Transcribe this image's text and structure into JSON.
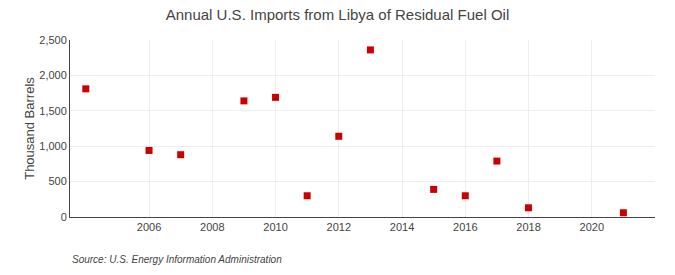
{
  "chart_data": {
    "type": "scatter",
    "title": "Annual U.S. Imports from Libya of Residual Fuel Oil",
    "ylabel": "Thousand Barrels",
    "annotations": [
      "Source: U.S. Energy Information Administration"
    ],
    "x": [
      2004,
      2006,
      2007,
      2009,
      2010,
      2011,
      2012,
      2013,
      2015,
      2016,
      2017,
      2018,
      2021
    ],
    "values": [
      1810,
      940,
      880,
      1640,
      1690,
      300,
      1140,
      2360,
      390,
      300,
      790,
      130,
      60
    ],
    "color": "#cc0000",
    "marker": "square",
    "xlim": [
      2003.5,
      2022
    ],
    "xticks": [
      2006,
      2008,
      2010,
      2012,
      2014,
      2016,
      2018,
      2020
    ],
    "ylim": [
      0,
      2500
    ],
    "yticks": [
      0,
      500,
      {
        "value": 1000,
        "label": "1,000"
      },
      {
        "value": 1500,
        "label": "1,500"
      },
      {
        "value": 2000,
        "label": "2,000"
      },
      {
        "value": 2500,
        "label": "2,500"
      }
    ],
    "grid": true
  }
}
